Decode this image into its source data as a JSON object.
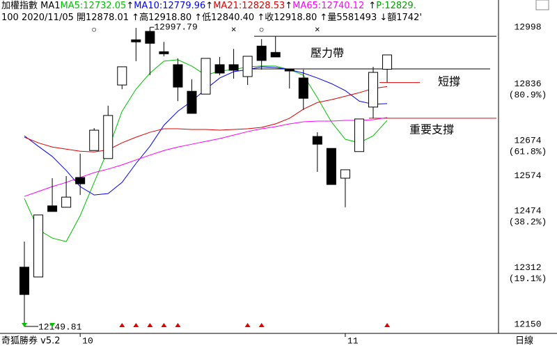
{
  "chart_data": {
    "type": "candlestick",
    "header": {
      "line1_prefix": "加權指數 MA1",
      "line1_suffix": [
        {
          "text": "↑",
          "color": "#000000"
        },
        {
          "text": "P:12829.",
          "color": "#00a000"
        }
      ],
      "line2": [
        {
          "text": "100 2020/11/05 開12878.01 ",
          "color": "#000000"
        },
        {
          "text": "↑",
          "color": "#000000"
        },
        {
          "text": "高12918.80 ",
          "color": "#000000"
        },
        {
          "text": "↑",
          "color": "#000000"
        },
        {
          "text": "低12840.40 ",
          "color": "#000000"
        },
        {
          "text": "↑",
          "color": "#000000"
        },
        {
          "text": "收12918.80 ",
          "color": "#000000"
        },
        {
          "text": "↑",
          "color": "#000000"
        },
        {
          "text": "量5581493 ",
          "color": "#000000"
        },
        {
          "text": "↓",
          "color": "#000000"
        },
        {
          "text": "額1742'",
          "color": "#000000"
        }
      ]
    },
    "categories": [
      null,
      null,
      null,
      null,
      "10",
      null,
      null,
      null,
      null,
      null,
      null,
      null,
      null,
      null,
      null,
      null,
      null,
      null,
      null,
      null,
      null,
      null,
      null,
      "11",
      null,
      null,
      null
    ],
    "candles": {
      "open": [
        12313,
        12285,
        12488,
        12484,
        12569,
        12646,
        12623,
        12833,
        12962,
        12986,
        12928,
        12891,
        12815,
        12807,
        12891,
        12891,
        12857,
        12944,
        12926,
        12879,
        12853,
        12686,
        12652,
        12567,
        12643,
        12770,
        12878.01
      ],
      "high": [
        12386,
        12462,
        12567,
        12573,
        12637,
        12710,
        12774,
        12885,
        12996,
        12997.79,
        12956,
        12909,
        12849,
        12909,
        12913,
        12936,
        12915,
        12964,
        12972,
        12879,
        12877,
        12698,
        12652,
        12591,
        12736,
        12885,
        12918.8
      ],
      "low": [
        12149.81,
        12285,
        12472,
        12484,
        12519,
        12646,
        12623,
        12821,
        12901,
        12861,
        12915,
        12787,
        12752,
        12807,
        12861,
        12851,
        12833,
        12877,
        12913,
        12823,
        12762,
        12585,
        12549,
        12484,
        12643,
        12738,
        12840.4
      ],
      "close": [
        12235,
        12462,
        12472,
        12513,
        12551,
        12704,
        12746,
        12885,
        12956,
        12952,
        12922,
        12827,
        12752,
        12909,
        12867,
        12875,
        12915,
        12903,
        12913,
        12873,
        12795,
        12664,
        12549,
        12591,
        12736,
        12869,
        12918.8
      ]
    },
    "series": [
      {
        "name": "MA5:12732.05",
        "color": "#00c000",
        "values": [
          12509,
          12420,
          12396,
          12386,
          12460,
          12555,
          12648,
          12758,
          12821,
          12867,
          12901,
          12905,
          12887,
          12861,
          12873,
          12877,
          12885,
          12887,
          12887,
          12877,
          12861,
          12797,
          12728,
          12678,
          12668,
          12688,
          12732.05
        ]
      },
      {
        "name": "MA10:12779.96",
        "arrow": "↑",
        "color": "#0000ff",
        "values": [
          12688,
          12658,
          12629,
          12589,
          12543,
          12519,
          12523,
          12555,
          12609,
          12658,
          12718,
          12758,
          12787,
          12821,
          12853,
          12871,
          12877,
          12885,
          12883,
          12877,
          12867,
          12853,
          12837,
          12817,
          12787,
          12778,
          12779.96
        ]
      },
      {
        "name": "MA21:12828.53",
        "arrow": "↑",
        "color": "#e00000",
        "values": [
          12684,
          12668,
          12656,
          12650,
          12644,
          12642,
          12648,
          12668,
          12684,
          12698,
          12708,
          12708,
          12706,
          12706,
          12704,
          12706,
          12708,
          12712,
          12722,
          12738,
          12764,
          12783,
          12791,
          12801,
          12811,
          12823,
          12828.53
        ]
      },
      {
        "name": "MA65:12740.12",
        "arrow": "↑",
        "color": "#ff00ff",
        "values": [
          12515,
          12529,
          12543,
          12555,
          12569,
          12583,
          12593,
          12605,
          12619,
          12633,
          12646,
          12656,
          12664,
          12672,
          12680,
          12690,
          12700,
          12708,
          12714,
          12722,
          12728,
          12730,
          12730,
          12732,
          12732,
          12734,
          12740.12
        ]
      }
    ],
    "ylim": [
      12124,
      13016
    ],
    "yticks": [
      12150,
      12312,
      12474,
      12574,
      12674,
      12836,
      12998
    ],
    "fib_levels": [
      {
        "value": 12836,
        "label": "(80.9%)"
      },
      {
        "value": 12674,
        "label": "(61.8%)"
      },
      {
        "value": 12474,
        "label": "(38.2%)"
      },
      {
        "value": 12312,
        "label": "(19.1%)"
      }
    ],
    "extremes": {
      "high": 12997.79,
      "low": 12149.81
    },
    "annotations": [
      {
        "label": "壓力帶",
        "values": [
          12972,
          12879
        ],
        "color": "#000000"
      },
      {
        "label": "短撐",
        "values": [
          12840
        ],
        "color": "#e00000"
      },
      {
        "label": "重要支撐",
        "values": [
          12738
        ],
        "color": "#e00000"
      }
    ],
    "top_signals": [
      {
        "index": 5,
        "symbol": "○"
      },
      {
        "index": 15,
        "symbol": "×"
      },
      {
        "index": 17,
        "symbol": "○"
      },
      {
        "index": 21,
        "symbol": "×"
      }
    ],
    "buy_arrows": [
      7,
      8,
      9,
      10,
      11,
      16,
      17,
      26
    ],
    "sell_arrows": [
      0,
      2
    ],
    "footer_left": "奇狐勝券 v5.2",
    "footer_right": "日線"
  }
}
